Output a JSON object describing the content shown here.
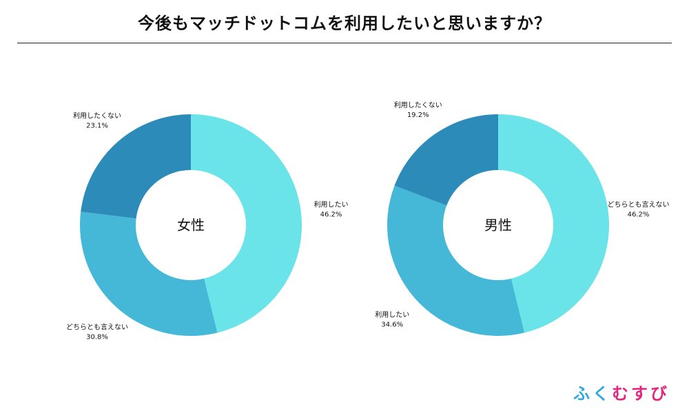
{
  "title": "今後もマッチドットコムを利用したいと思いますか？",
  "brand": {
    "chars": [
      "ふ",
      "く",
      "む",
      "す",
      "び"
    ],
    "colors": [
      "#2fa7e0",
      "#2fa7e0",
      "#e5267f",
      "#e5267f",
      "#e5267f"
    ]
  },
  "chart_data": [
    {
      "type": "donut",
      "center_label": "女性",
      "slices": [
        {
          "label": "利用したい",
          "value": 46.2,
          "value_text": "46.2%",
          "color": "#6ae4e8"
        },
        {
          "label": "どちらとも言えない",
          "value": 30.8,
          "value_text": "30.8%",
          "color": "#44b8d6"
        },
        {
          "label": "利用したくない",
          "value": 23.1,
          "value_text": "23.1%",
          "color": "#2d8bb9"
        }
      ]
    },
    {
      "type": "donut",
      "center_label": "男性",
      "slices": [
        {
          "label": "どちらとも言えない",
          "value": 46.2,
          "value_text": "46.2%",
          "color": "#6ae4e8"
        },
        {
          "label": "利用したい",
          "value": 34.6,
          "value_text": "34.6%",
          "color": "#44b8d6"
        },
        {
          "label": "利用したくない",
          "value": 19.2,
          "value_text": "19.2%",
          "color": "#2d8bb9"
        }
      ]
    }
  ]
}
